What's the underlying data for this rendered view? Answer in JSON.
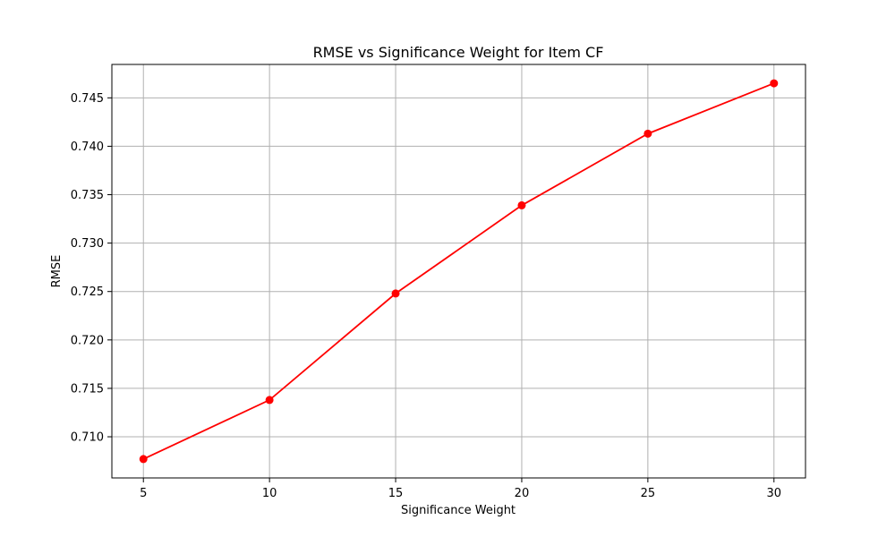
{
  "chart_data": {
    "type": "line",
    "title": "RMSE vs Significance Weight for Item CF",
    "xlabel": "Significance Weight",
    "ylabel": "RMSE",
    "x": [
      5,
      10,
      15,
      20,
      25,
      30
    ],
    "series": [
      {
        "values": [
          0.7077,
          0.7138,
          0.7248,
          0.7339,
          0.7413,
          0.7465
        ],
        "color": "#ff0000",
        "marker": "circle"
      }
    ],
    "xticks": [
      5,
      10,
      15,
      20,
      25,
      30
    ],
    "yticks": [
      "0.710",
      "0.715",
      "0.720",
      "0.725",
      "0.730",
      "0.735",
      "0.740",
      "0.745"
    ],
    "ytick_values": [
      0.71,
      0.715,
      0.72,
      0.725,
      0.73,
      0.735,
      0.74,
      0.745
    ],
    "xlim": [
      3.75,
      31.25
    ],
    "ylim": [
      0.70575,
      0.74845
    ],
    "grid": true,
    "colors": {
      "line": "#ff0000",
      "grid": "#b0b0b0",
      "axes": "#000000"
    }
  }
}
